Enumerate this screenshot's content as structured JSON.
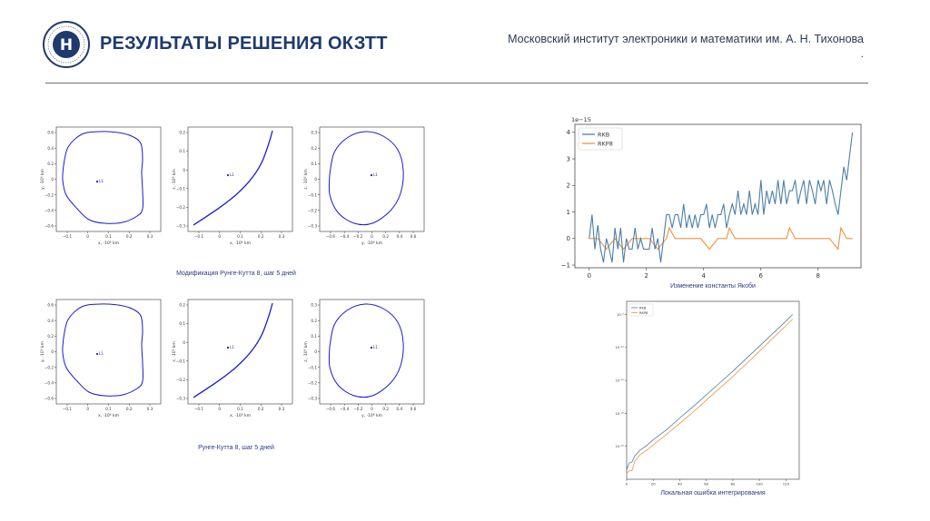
{
  "header": {
    "title": "РЕЗУЛЬТАТЫ РЕШЕНИЯ ОКЗТТ",
    "institute": "Московский институт электроники и математики им. А. Н. Тихонова",
    "institute_dot": "."
  },
  "captions": {
    "row1": "Модификация Рунге-Кутта 8, шаг 5 дней",
    "row2": "Рунге-Кутта 8, шаг 5 дней",
    "jacobi": "Изменение константы Якоби",
    "local_error": "Локальная ошибка интегрирования"
  },
  "orbit_plots": {
    "point_label": "L1",
    "panels": [
      {
        "id": "r1-xy",
        "xlabel": "x, ·10⁶ km",
        "ylabel": "y, ·10⁶ km",
        "xticks": [
          "−0.1",
          "0",
          "0.1",
          "0.2",
          "0.3"
        ],
        "yticks": [
          "0.6",
          "0.4",
          "0.2",
          "0",
          "−0.2",
          "−0.4",
          "−0.6"
        ]
      },
      {
        "id": "r1-xz",
        "xlabel": "x, ·10⁶ km",
        "ylabel": "z, ·10⁶ km",
        "xticks": [
          "−0.1",
          "0",
          "0.1",
          "0.2",
          "0.3"
        ],
        "yticks": [
          "0.2",
          "0.1",
          "0",
          "−0.1",
          "−0.2",
          "−0.3"
        ]
      },
      {
        "id": "r1-yz",
        "xlabel": "y, ·10⁶ km",
        "ylabel": "z, ·10⁶ km",
        "xticks": [
          "−0.6",
          "−0.4",
          "−0.2",
          "0",
          "0.2",
          "0.4",
          "0.6"
        ],
        "yticks": [
          "0.3",
          "0.2",
          "0.1",
          "0",
          "−0.1",
          "−0.2",
          "−0.3"
        ]
      },
      {
        "id": "r2-xy",
        "xlabel": "x, ·10⁶ km",
        "ylabel": "y, ·10⁶ km",
        "xticks": [
          "−0.1",
          "0",
          "0.1",
          "0.2",
          "0.3"
        ],
        "yticks": [
          "0.6",
          "0.4",
          "0.2",
          "0",
          "−0.2",
          "−0.4",
          "−0.6"
        ]
      },
      {
        "id": "r2-xz",
        "xlabel": "x, ·10⁶ km",
        "ylabel": "z, ·10⁶ km",
        "xticks": [
          "−0.1",
          "0",
          "0.1",
          "0.2",
          "0.3"
        ],
        "yticks": [
          "0.2",
          "0.1",
          "0",
          "−0.1",
          "−0.2",
          "−0.3"
        ]
      },
      {
        "id": "r2-yz",
        "xlabel": "y, ·10⁶ km",
        "ylabel": "z, ·10⁶ km",
        "xticks": [
          "−0.6",
          "−0.4",
          "−0.2",
          "0",
          "0.2",
          "0.4",
          "0.6"
        ],
        "yticks": [
          "0.3",
          "0.2",
          "0.1",
          "0",
          "−0.1",
          "−0.2",
          "−0.3"
        ]
      }
    ]
  },
  "chart_data": [
    {
      "type": "line",
      "id": "jacobi",
      "scale_label": "1e−15",
      "xlim": [
        -0.5,
        9.5
      ],
      "ylim": [
        -1.1,
        4.3
      ],
      "xticks": [
        0,
        2,
        4,
        6,
        8
      ],
      "yticks": [
        -1,
        0,
        1,
        2,
        3,
        4
      ],
      "legend": "top-left",
      "series": [
        {
          "name": "RKB",
          "color": "#4a7fa8",
          "x": [
            0,
            0.1,
            0.2,
            0.3,
            0.4,
            0.5,
            0.6,
            0.7,
            0.8,
            0.9,
            1.0,
            1.1,
            1.2,
            1.3,
            1.4,
            1.5,
            1.6,
            1.7,
            1.8,
            1.9,
            2.0,
            2.1,
            2.2,
            2.3,
            2.4,
            2.5,
            2.6,
            2.7,
            2.8,
            2.9,
            3.0,
            3.1,
            3.2,
            3.3,
            3.4,
            3.5,
            3.6,
            3.7,
            3.8,
            3.9,
            4.0,
            4.1,
            4.2,
            4.3,
            4.4,
            4.5,
            4.6,
            4.7,
            4.8,
            4.9,
            5.0,
            5.1,
            5.2,
            5.3,
            5.4,
            5.5,
            5.6,
            5.7,
            5.8,
            5.9,
            6.0,
            6.1,
            6.2,
            6.3,
            6.4,
            6.5,
            6.6,
            6.7,
            6.8,
            6.9,
            7.0,
            7.1,
            7.2,
            7.3,
            7.4,
            7.5,
            7.6,
            7.7,
            7.8,
            7.9,
            8.0,
            8.1,
            8.2,
            8.3,
            8.4,
            8.5,
            8.6,
            8.7,
            8.8,
            8.9,
            9.0,
            9.1,
            9.2
          ],
          "y": [
            0,
            0.9,
            -0.4,
            0.5,
            -0.4,
            -0.9,
            0,
            -0.4,
            -0.9,
            0.4,
            -0.4,
            0.4,
            -0.9,
            0,
            -0.4,
            -0.4,
            0.4,
            -0.4,
            0,
            -0.4,
            -0.4,
            -0.4,
            0.4,
            -0.4,
            0,
            -0.9,
            0,
            0.9,
            0.9,
            0.4,
            0.9,
            0.9,
            0.4,
            1.3,
            0.4,
            0.9,
            0.4,
            0.9,
            0.4,
            0.9,
            0.9,
            1.3,
            0.4,
            0.9,
            0.4,
            0.9,
            0.9,
            1.3,
            0.4,
            0.9,
            1.3,
            0.9,
            1.8,
            0.9,
            1.3,
            0.9,
            1.8,
            0.9,
            1.3,
            0.9,
            2.2,
            0.9,
            1.8,
            1.3,
            1.8,
            1.3,
            2.2,
            1.3,
            2.2,
            1.3,
            1.8,
            1.8,
            2.2,
            1.3,
            1.8,
            2.2,
            1.3,
            2.2,
            1.8,
            1.3,
            2.2,
            1.8,
            2.2,
            1.3,
            2.2,
            1.8,
            1.3,
            0.9,
            1.8,
            2.7,
            2.2,
            3.1,
            4.0
          ]
        },
        {
          "name": "RKP8",
          "color": "#f0923a",
          "x": [
            0,
            0.3,
            0.6,
            0.9,
            1.2,
            1.5,
            1.8,
            2.1,
            2.4,
            2.7,
            2.8,
            3.0,
            3.3,
            3.6,
            3.9,
            4.2,
            4.5,
            4.8,
            4.9,
            5.1,
            5.4,
            5.7,
            6.0,
            6.3,
            6.6,
            6.9,
            7.0,
            7.2,
            7.5,
            7.8,
            8.1,
            8.4,
            8.7,
            8.8,
            9.0,
            9.2
          ],
          "y": [
            0,
            0,
            -0.4,
            0,
            -0.4,
            0,
            0,
            0,
            -0.4,
            0,
            0.4,
            0,
            0,
            0,
            0,
            -0.4,
            0,
            0,
            0.4,
            0,
            0,
            0,
            0,
            0,
            0,
            0,
            0.4,
            0,
            0,
            0,
            0,
            0,
            -0.4,
            0.4,
            0,
            0
          ]
        }
      ]
    },
    {
      "type": "line",
      "id": "local-error",
      "xlim": [
        0,
        130
      ],
      "xticks": [
        0,
        20,
        40,
        60,
        80,
        100,
        120
      ],
      "y_scale": "log",
      "ytick_labels": [
        "10⁻²⁵",
        "10⁻²⁰",
        "10⁻¹⁵",
        "10⁻¹⁰",
        "10⁻⁵"
      ],
      "legend": "top-left",
      "series": [
        {
          "name": "RKB",
          "color": "#4a7fa8",
          "x": [
            0,
            2,
            4,
            6,
            10,
            15,
            20,
            30,
            40,
            50,
            60,
            70,
            80,
            90,
            100,
            110,
            120,
            125
          ],
          "logy": [
            -28.6,
            -27.5,
            -27.4,
            -26.5,
            -25.6,
            -24.9,
            -24.0,
            -22.5,
            -20.7,
            -19.0,
            -17.2,
            -15.4,
            -13.6,
            -11.7,
            -9.8,
            -7.9,
            -6.0,
            -5.0
          ]
        },
        {
          "name": "RKP8",
          "color": "#f0923a",
          "x": [
            0,
            2,
            4,
            6,
            10,
            15,
            20,
            30,
            40,
            50,
            60,
            70,
            80,
            90,
            100,
            110,
            120,
            125
          ],
          "logy": [
            -29.1,
            -28.7,
            -28.7,
            -27.3,
            -26.3,
            -25.6,
            -24.8,
            -23.2,
            -21.5,
            -19.8,
            -18.0,
            -16.2,
            -14.4,
            -12.5,
            -10.6,
            -8.6,
            -6.7,
            -5.7
          ]
        }
      ]
    }
  ]
}
